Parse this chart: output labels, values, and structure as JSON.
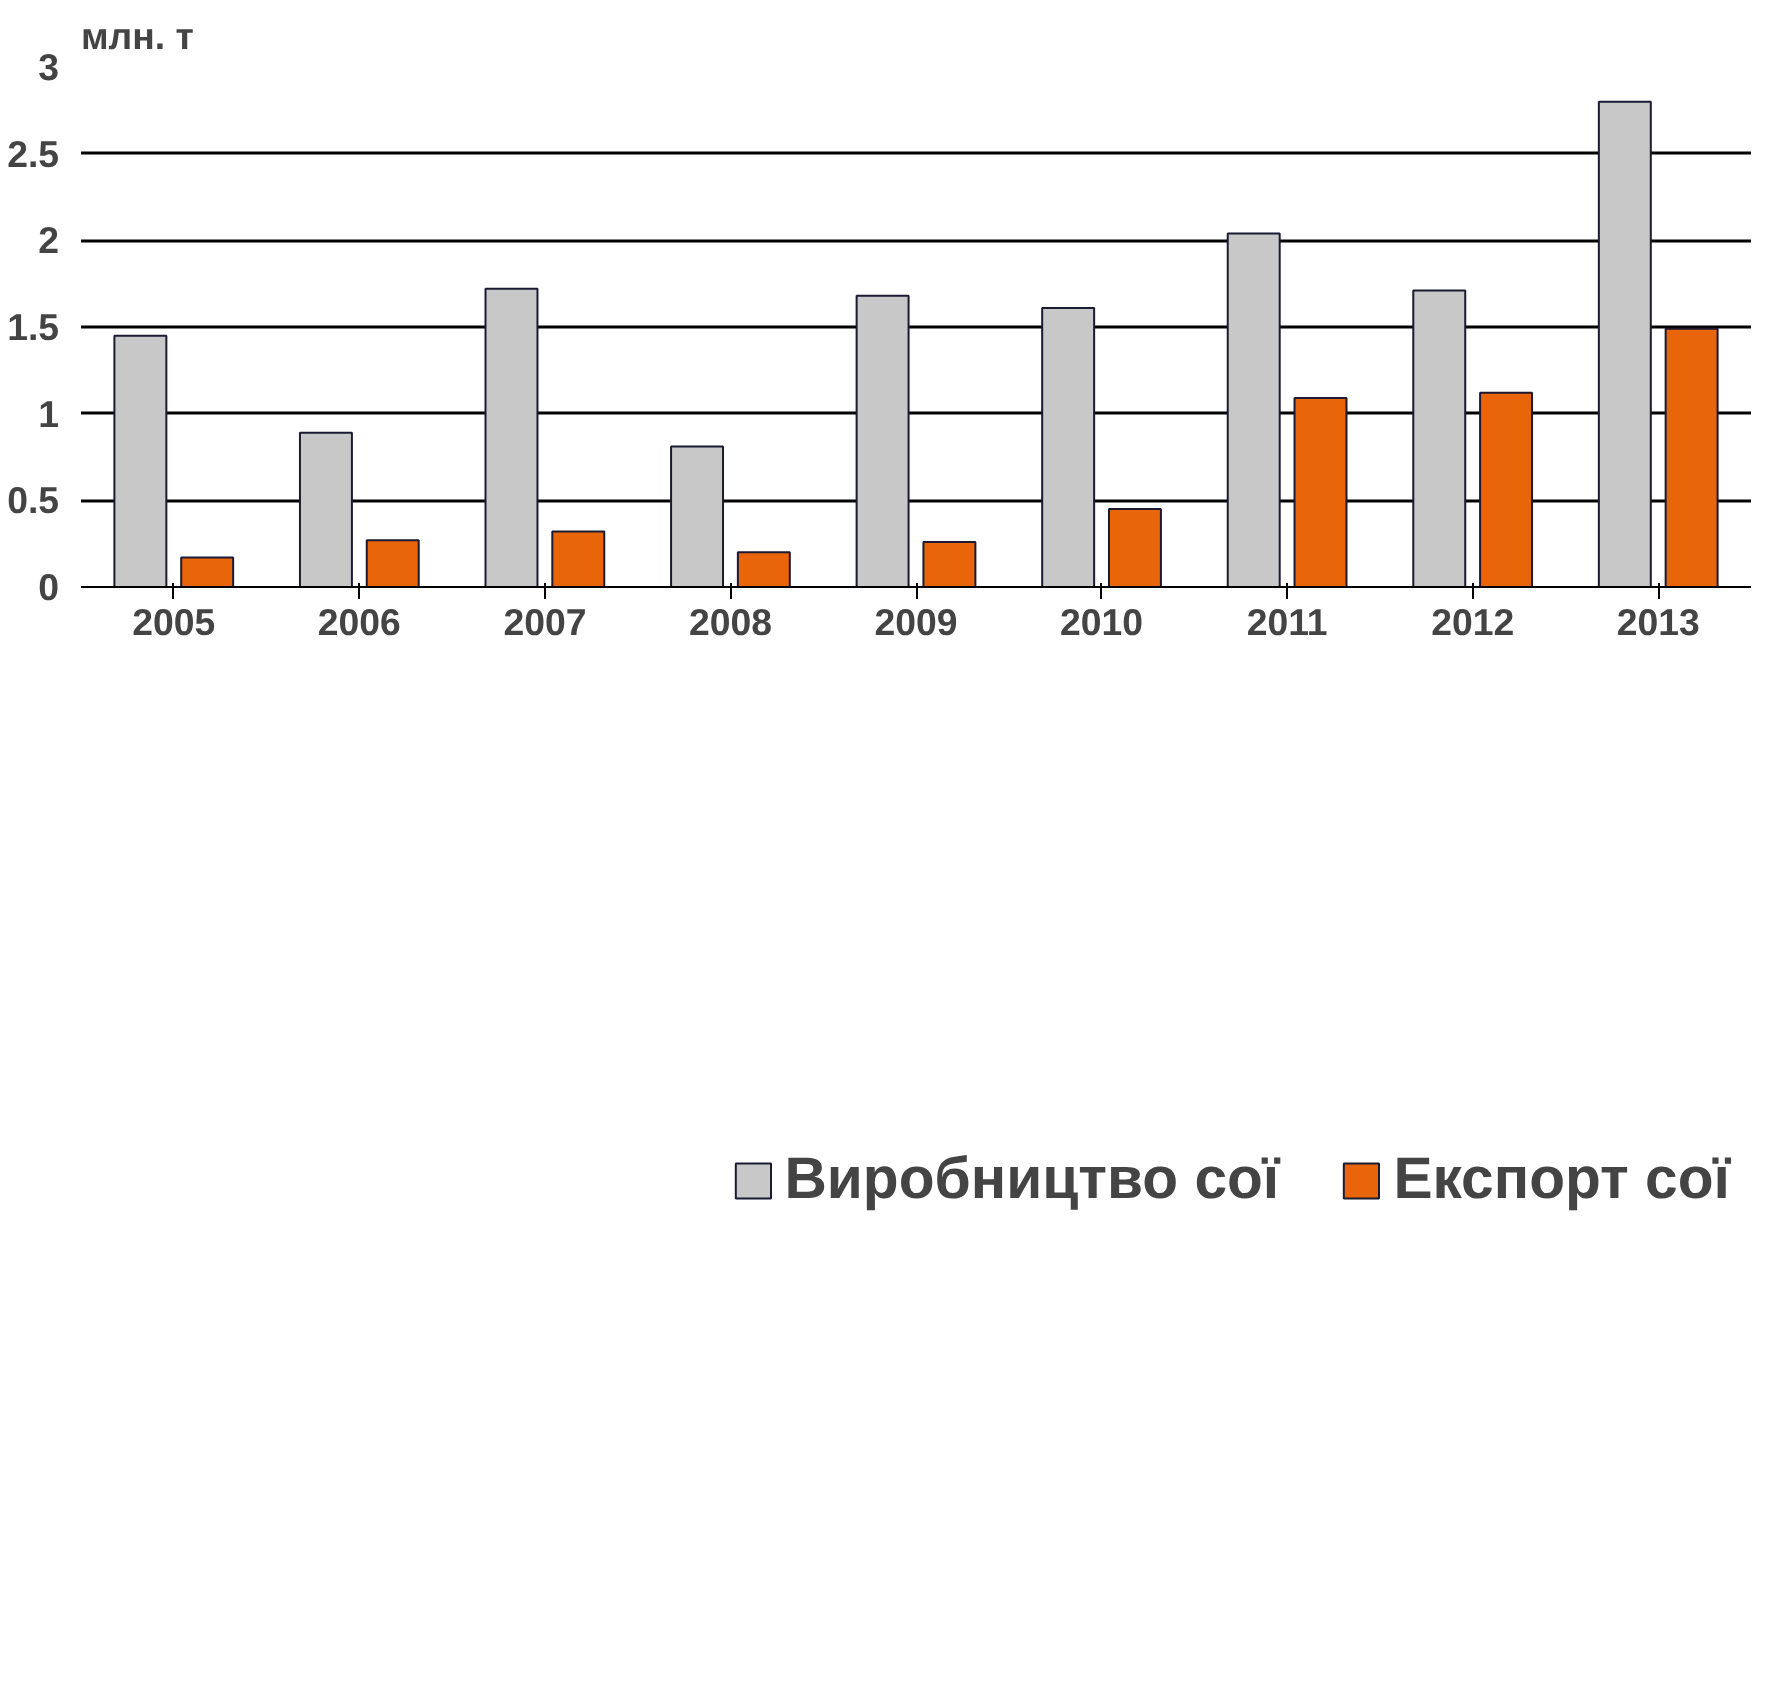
{
  "chart_data": {
    "type": "bar",
    "ylabel": "млн. т",
    "categories": [
      "2005",
      "2006",
      "2007",
      "2008",
      "2009",
      "2010",
      "2011",
      "2012",
      "2013"
    ],
    "series": [
      {
        "name": "Виробництво сої",
        "color": "#c8c8c8",
        "values": [
          1.45,
          0.89,
          1.72,
          0.81,
          1.68,
          1.61,
          2.04,
          1.71,
          2.8
        ]
      },
      {
        "name": "Експорт сої",
        "color": "#e8650a",
        "values": [
          0.17,
          0.27,
          0.32,
          0.2,
          0.26,
          0.45,
          1.09,
          1.12,
          1.49
        ]
      }
    ],
    "ylim": [
      0,
      3
    ],
    "yticks": [
      0,
      0.5,
      1,
      1.5,
      2,
      2.5,
      3
    ],
    "grid": "y",
    "legend": "bottom"
  }
}
